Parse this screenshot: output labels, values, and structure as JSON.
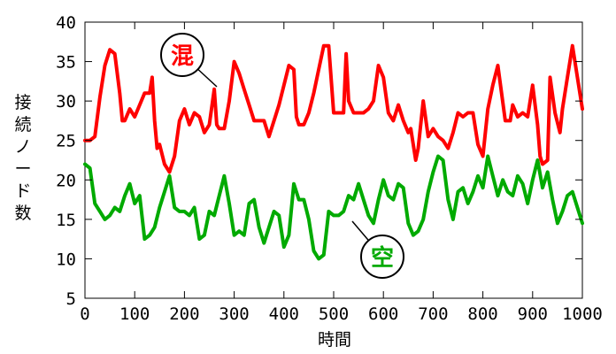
{
  "chart_data": {
    "type": "line",
    "xlabel": "時間",
    "ylabel": "接続ノード数",
    "xlim": [
      0,
      1000
    ],
    "ylim": [
      5,
      40
    ],
    "xticks": [
      "0",
      "100",
      "200",
      "300",
      "400",
      "500",
      "600",
      "700",
      "800",
      "900",
      "1000"
    ],
    "yticks": [
      "5",
      "10",
      "15",
      "20",
      "25",
      "30",
      "35",
      "40"
    ],
    "grid": false,
    "series": [
      {
        "name": "混",
        "color": "#ff0000",
        "points": [
          [
            0,
            25
          ],
          [
            10,
            25
          ],
          [
            20,
            25.5
          ],
          [
            30,
            30.5
          ],
          [
            40,
            34.5
          ],
          [
            50,
            36.5
          ],
          [
            60,
            36
          ],
          [
            70,
            31
          ],
          [
            75,
            27.5
          ],
          [
            80,
            27.5
          ],
          [
            90,
            29
          ],
          [
            100,
            28
          ],
          [
            110,
            29.5
          ],
          [
            120,
            31
          ],
          [
            130,
            31
          ],
          [
            135,
            33
          ],
          [
            140,
            27.5
          ],
          [
            145,
            24
          ],
          [
            150,
            24.5
          ],
          [
            160,
            22
          ],
          [
            170,
            21
          ],
          [
            180,
            23
          ],
          [
            190,
            27.5
          ],
          [
            200,
            29
          ],
          [
            210,
            27
          ],
          [
            220,
            28.5
          ],
          [
            230,
            28
          ],
          [
            240,
            26
          ],
          [
            250,
            27
          ],
          [
            260,
            31.5
          ],
          [
            265,
            27
          ],
          [
            270,
            26.5
          ],
          [
            280,
            26.5
          ],
          [
            290,
            30
          ],
          [
            300,
            35
          ],
          [
            310,
            33.5
          ],
          [
            320,
            31.5
          ],
          [
            330,
            29.5
          ],
          [
            340,
            27.5
          ],
          [
            350,
            27.5
          ],
          [
            360,
            27.5
          ],
          [
            370,
            25.5
          ],
          [
            380,
            27.5
          ],
          [
            390,
            29.5
          ],
          [
            400,
            32
          ],
          [
            410,
            34.5
          ],
          [
            420,
            34
          ],
          [
            425,
            28
          ],
          [
            430,
            27
          ],
          [
            440,
            27
          ],
          [
            450,
            28.5
          ],
          [
            460,
            31
          ],
          [
            470,
            34
          ],
          [
            480,
            37
          ],
          [
            490,
            37
          ],
          [
            500,
            28.5
          ],
          [
            510,
            28.5
          ],
          [
            520,
            28.5
          ],
          [
            525,
            36
          ],
          [
            530,
            30
          ],
          [
            540,
            28.5
          ],
          [
            550,
            28.5
          ],
          [
            560,
            28.5
          ],
          [
            570,
            29
          ],
          [
            580,
            30
          ],
          [
            590,
            34.5
          ],
          [
            600,
            33
          ],
          [
            610,
            28.5
          ],
          [
            620,
            27.5
          ],
          [
            630,
            29.5
          ],
          [
            640,
            27.5
          ],
          [
            650,
            26
          ],
          [
            655,
            26.5
          ],
          [
            665,
            22.5
          ],
          [
            670,
            24
          ],
          [
            680,
            30
          ],
          [
            690,
            25.5
          ],
          [
            700,
            26.5
          ],
          [
            710,
            25.5
          ],
          [
            720,
            25
          ],
          [
            730,
            24
          ],
          [
            740,
            26
          ],
          [
            750,
            28.5
          ],
          [
            760,
            28
          ],
          [
            770,
            28.5
          ],
          [
            780,
            28.5
          ],
          [
            790,
            24.5
          ],
          [
            800,
            23
          ],
          [
            810,
            29
          ],
          [
            820,
            32
          ],
          [
            830,
            34.5
          ],
          [
            845,
            27.5
          ],
          [
            855,
            27.5
          ],
          [
            860,
            29.5
          ],
          [
            870,
            28
          ],
          [
            880,
            28.5
          ],
          [
            890,
            28
          ],
          [
            900,
            32
          ],
          [
            910,
            27
          ],
          [
            915,
            23
          ],
          [
            920,
            22
          ],
          [
            930,
            22.5
          ],
          [
            935,
            33
          ],
          [
            945,
            28.5
          ],
          [
            955,
            26
          ],
          [
            960,
            29
          ],
          [
            970,
            33
          ],
          [
            980,
            37
          ],
          [
            990,
            33
          ],
          [
            1000,
            29
          ]
        ]
      },
      {
        "name": "空",
        "color": "#00aa00",
        "points": [
          [
            0,
            22
          ],
          [
            10,
            21.5
          ],
          [
            20,
            17
          ],
          [
            30,
            16
          ],
          [
            40,
            15
          ],
          [
            50,
            15.5
          ],
          [
            60,
            16.5
          ],
          [
            70,
            16
          ],
          [
            80,
            18
          ],
          [
            90,
            19.5
          ],
          [
            100,
            17
          ],
          [
            110,
            18
          ],
          [
            120,
            12.5
          ],
          [
            130,
            13
          ],
          [
            140,
            14
          ],
          [
            150,
            16.5
          ],
          [
            160,
            18.5
          ],
          [
            170,
            20.5
          ],
          [
            180,
            16.5
          ],
          [
            190,
            16
          ],
          [
            200,
            16
          ],
          [
            210,
            15.5
          ],
          [
            220,
            16.5
          ],
          [
            230,
            12.5
          ],
          [
            240,
            13
          ],
          [
            250,
            16
          ],
          [
            260,
            15.5
          ],
          [
            270,
            18
          ],
          [
            280,
            20.5
          ],
          [
            290,
            17
          ],
          [
            300,
            13
          ],
          [
            310,
            13.5
          ],
          [
            320,
            13
          ],
          [
            330,
            17
          ],
          [
            340,
            17.5
          ],
          [
            350,
            14
          ],
          [
            360,
            12
          ],
          [
            370,
            14
          ],
          [
            380,
            16
          ],
          [
            390,
            15.5
          ],
          [
            400,
            11.5
          ],
          [
            410,
            13
          ],
          [
            420,
            19.5
          ],
          [
            430,
            17.5
          ],
          [
            440,
            17.5
          ],
          [
            450,
            15
          ],
          [
            460,
            11
          ],
          [
            470,
            10
          ],
          [
            480,
            10.5
          ],
          [
            490,
            16
          ],
          [
            500,
            15.5
          ],
          [
            510,
            15.5
          ],
          [
            520,
            16
          ],
          [
            530,
            18
          ],
          [
            540,
            17.5
          ],
          [
            550,
            19.5
          ],
          [
            560,
            17.5
          ],
          [
            570,
            15.5
          ],
          [
            580,
            14.5
          ],
          [
            590,
            17.5
          ],
          [
            600,
            20
          ],
          [
            610,
            18
          ],
          [
            620,
            17.5
          ],
          [
            630,
            19.5
          ],
          [
            640,
            19
          ],
          [
            650,
            14.5
          ],
          [
            660,
            13
          ],
          [
            670,
            13.5
          ],
          [
            680,
            15
          ],
          [
            690,
            18.5
          ],
          [
            700,
            21
          ],
          [
            710,
            23
          ],
          [
            720,
            22.5
          ],
          [
            730,
            17.5
          ],
          [
            740,
            15
          ],
          [
            750,
            18.5
          ],
          [
            760,
            19
          ],
          [
            770,
            17
          ],
          [
            780,
            18.5
          ],
          [
            790,
            20.5
          ],
          [
            800,
            19
          ],
          [
            810,
            23
          ],
          [
            820,
            20.5
          ],
          [
            830,
            18
          ],
          [
            840,
            20
          ],
          [
            850,
            18.5
          ],
          [
            860,
            18
          ],
          [
            870,
            20.5
          ],
          [
            880,
            19.5
          ],
          [
            890,
            17
          ],
          [
            900,
            20
          ],
          [
            910,
            22.5
          ],
          [
            920,
            19
          ],
          [
            930,
            21
          ],
          [
            940,
            17.5
          ],
          [
            950,
            14.5
          ],
          [
            960,
            16
          ],
          [
            970,
            18
          ],
          [
            980,
            18.5
          ],
          [
            990,
            16.5
          ],
          [
            1000,
            14.5
          ]
        ]
      }
    ],
    "annotations": [
      {
        "text": "混",
        "color": "#ff0000",
        "series": 0
      },
      {
        "text": "空",
        "color": "#00aa00",
        "series": 1
      }
    ]
  }
}
